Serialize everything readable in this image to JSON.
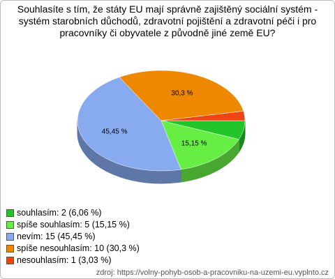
{
  "chart_data": {
    "type": "pie3d",
    "title": "Souhlasíte s tím, že státy EU mají správně zajištěný sociální systém - systém starobních důchodů, zdravotní pojištění a zdravotní péči i pro pracovníky či obyvatele z původně jiné země EU?",
    "categories": [
      "souhlasím: 2 (6,06 %)",
      "spíše souhlasím: 5 (15,15 %)",
      "nevím: 15 (45,45 %)",
      "spíše nesouhlasím: 10 (30,3 %)",
      "nesouhlasím: 1 (3,03 %)"
    ],
    "values": [
      6.06,
      15.15,
      45.45,
      30.3,
      3.03
    ],
    "value_labels": [
      null,
      "15,15 %",
      "45,45 %",
      "30,3 %",
      null
    ],
    "colors": [
      "#22c42a",
      "#66ee44",
      "#88aaee",
      "#ee8800",
      "#ee4411"
    ],
    "source": "zdroj: https://volny-pohyb-osob-a-pracovniku-na-uzemi-eu.vyplnto.cz"
  }
}
